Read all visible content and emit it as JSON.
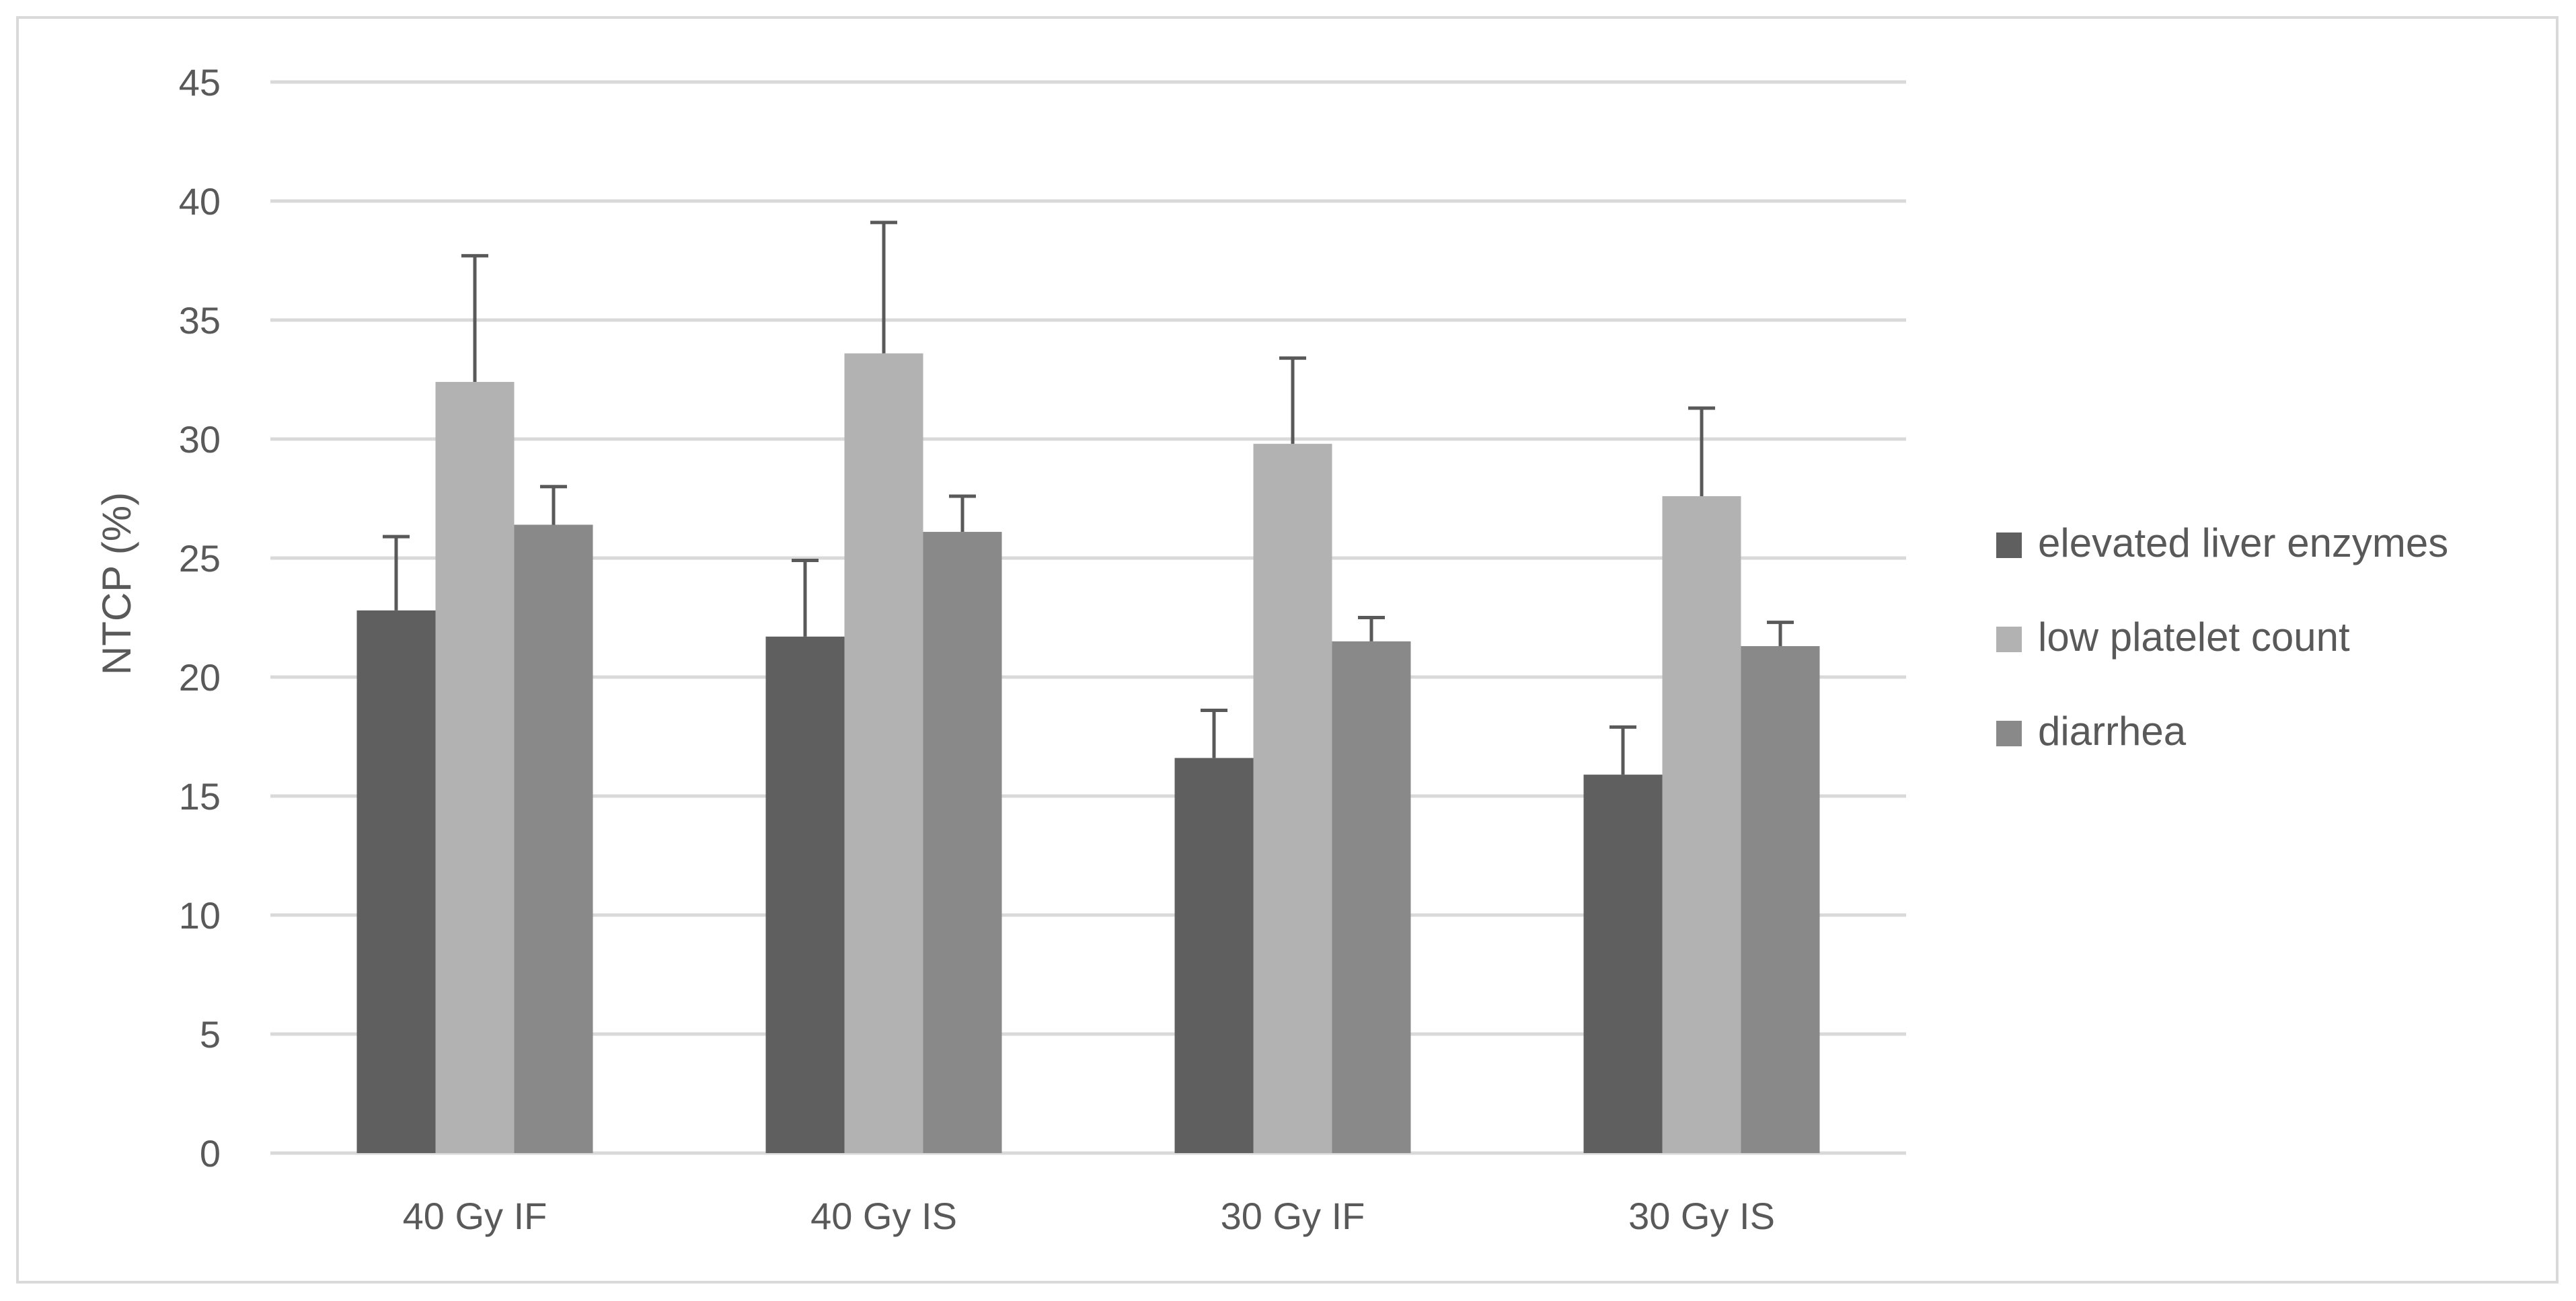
{
  "chart_data": {
    "type": "bar",
    "title": "",
    "xlabel": "",
    "ylabel": "NTCP (%)",
    "ylim": [
      0,
      45
    ],
    "yticks": [
      0,
      5,
      10,
      15,
      20,
      25,
      30,
      35,
      40,
      45
    ],
    "grid": true,
    "legend_position": "right",
    "categories": [
      "40 Gy IF",
      "40 Gy IS",
      "30 Gy IF",
      "30 Gy IS"
    ],
    "series": [
      {
        "name": "elevated liver enzymes",
        "color": "#5f5f5f",
        "values": [
          22.8,
          21.7,
          16.6,
          15.9
        ],
        "error_upper": [
          3.1,
          3.2,
          2.0,
          2.0
        ]
      },
      {
        "name": "low platelet count",
        "color": "#b2b2b2",
        "values": [
          32.4,
          33.6,
          29.8,
          27.6
        ],
        "error_upper": [
          5.3,
          5.5,
          3.6,
          3.7
        ]
      },
      {
        "name": "diarrhea",
        "color": "#898989",
        "values": [
          26.4,
          26.1,
          21.5,
          21.3
        ],
        "error_upper": [
          1.6,
          1.5,
          1.0,
          1.0
        ]
      }
    ]
  }
}
